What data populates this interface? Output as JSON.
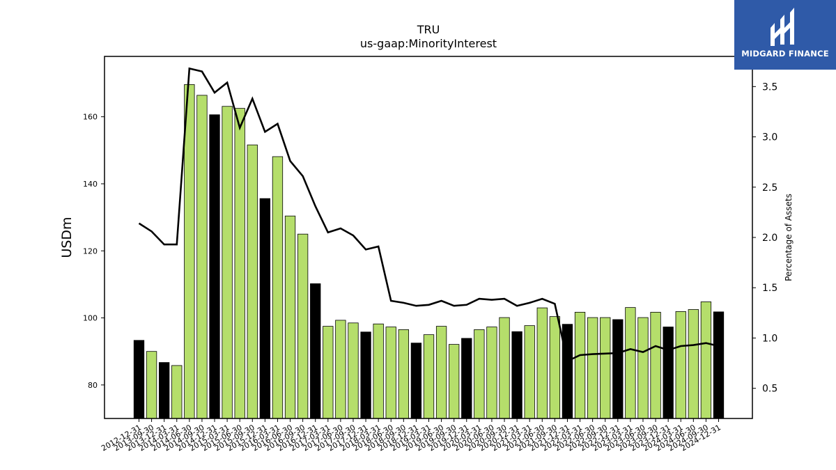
{
  "brand": {
    "name": "MIDGARD FINANCE",
    "background": "#2f5aa8"
  },
  "chart_data": {
    "type": "bar",
    "title": "TRU",
    "subtitle": "us-gaap:MinorityInterest",
    "ylabel": "USDm",
    "y2label": "Percentage of Assets",
    "ylim": [
      70,
      178
    ],
    "y2lim": [
      0.2,
      3.8
    ],
    "yticks": [
      80,
      100,
      120,
      140,
      160
    ],
    "y2ticks": [
      0.5,
      1.0,
      1.5,
      2.0,
      2.5,
      3.0,
      3.5
    ],
    "y2tick_labels": [
      "0.5",
      "1.0",
      "1.5",
      "2.0",
      "2.5",
      "3.0",
      "3.5"
    ],
    "colors": {
      "annual": "#000000",
      "quarterly": "#b5de6b",
      "line": "#000000"
    },
    "categories": [
      "2012-12-31",
      "2013-09-30",
      "2013-12-31",
      "2014-03-31",
      "2014-06-30",
      "2014-09-30",
      "2014-12-31",
      "2015-03-31",
      "2015-06-30",
      "2015-09-30",
      "2015-12-31",
      "2016-03-31",
      "2016-06-30",
      "2016-09-30",
      "2016-12-31",
      "2017-03-31",
      "2017-06-30",
      "2017-09-30",
      "2017-12-31",
      "2018-03-31",
      "2018-06-30",
      "2018-09-30",
      "2018-12-31",
      "2019-03-31",
      "2019-06-30",
      "2019-09-30",
      "2019-12-31",
      "2020-03-31",
      "2020-06-30",
      "2020-09-30",
      "2020-12-31",
      "2021-03-31",
      "2021-06-30",
      "2021-09-30",
      "2021-12-31",
      "2022-03-31",
      "2022-06-30",
      "2022-09-30",
      "2022-12-31",
      "2023-03-31",
      "2023-06-30",
      "2023-09-30",
      "2023-12-31",
      "2024-03-31",
      "2024-06-30",
      "2024-09-30",
      "2024-12-31"
    ],
    "series": [
      {
        "values": [
          93.3,
          90.0,
          86.7,
          85.8,
          169.6,
          166.4,
          160.6,
          163.1,
          162.5,
          151.6,
          135.6,
          148.1,
          130.4,
          125.0,
          110.2,
          97.5,
          99.3,
          98.5,
          95.8,
          98.2,
          97.3,
          96.5,
          92.5,
          95.0,
          97.5,
          92.1,
          93.9,
          96.5,
          97.3,
          100.1,
          95.9,
          97.7,
          103.0,
          100.4,
          98.1,
          101.7,
          100.1,
          100.1,
          99.5,
          103.1,
          100.1,
          101.7,
          97.3,
          101.9,
          102.5,
          104.8,
          101.8
        ],
        "annual_flags": [
          1,
          0,
          1,
          0,
          0,
          0,
          1,
          0,
          0,
          0,
          1,
          0,
          0,
          0,
          1,
          0,
          0,
          0,
          1,
          0,
          0,
          0,
          1,
          0,
          0,
          0,
          1,
          0,
          0,
          0,
          1,
          0,
          0,
          0,
          1,
          0,
          0,
          0,
          1,
          0,
          0,
          0,
          1,
          0,
          0,
          0,
          1
        ]
      },
      {
        "axis": "right",
        "type": "line",
        "values": [
          2.14,
          2.06,
          1.93,
          1.93,
          3.68,
          3.65,
          3.44,
          3.54,
          3.09,
          3.38,
          3.05,
          3.13,
          2.76,
          2.61,
          2.31,
          2.05,
          2.09,
          2.02,
          1.88,
          1.91,
          1.37,
          1.35,
          1.32,
          1.33,
          1.37,
          1.32,
          1.33,
          1.39,
          1.38,
          1.39,
          1.32,
          1.35,
          1.39,
          1.34,
          0.77,
          0.83,
          0.84,
          0.845,
          0.85,
          0.89,
          0.86,
          0.92,
          0.88,
          0.92,
          0.93,
          0.95,
          0.92
        ]
      }
    ]
  }
}
